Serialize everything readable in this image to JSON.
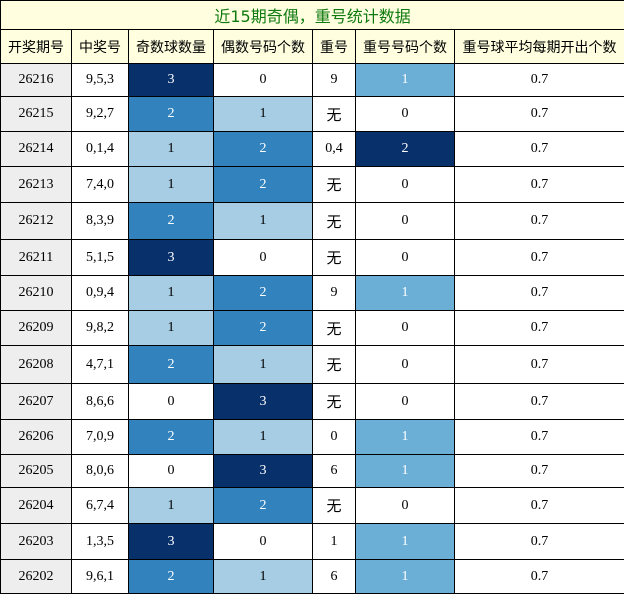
{
  "title": "近15期奇偶，重号统计数据",
  "headers": [
    "开奖期号",
    "中奖号",
    "奇数球数量",
    "偶数号码个数",
    "重号",
    "重号号码个数",
    "重号球平均每期开出个数"
  ],
  "rows": [
    {
      "issue": "26216",
      "numbers": "9,5,3",
      "odd": "3",
      "even": "0",
      "repeat": "9",
      "repeat_count": "1",
      "avg": "0.7"
    },
    {
      "issue": "26215",
      "numbers": "9,2,7",
      "odd": "2",
      "even": "1",
      "repeat": "无",
      "repeat_count": "0",
      "avg": "0.7"
    },
    {
      "issue": "26214",
      "numbers": "0,1,4",
      "odd": "1",
      "even": "2",
      "repeat": "0,4",
      "repeat_count": "2",
      "avg": "0.7"
    },
    {
      "issue": "26213",
      "numbers": "7,4,0",
      "odd": "1",
      "even": "2",
      "repeat": "无",
      "repeat_count": "0",
      "avg": "0.7"
    },
    {
      "issue": "26212",
      "numbers": "8,3,9",
      "odd": "2",
      "even": "1",
      "repeat": "无",
      "repeat_count": "0",
      "avg": "0.7"
    },
    {
      "issue": "26211",
      "numbers": "5,1,5",
      "odd": "3",
      "even": "0",
      "repeat": "无",
      "repeat_count": "0",
      "avg": "0.7"
    },
    {
      "issue": "26210",
      "numbers": "0,9,4",
      "odd": "1",
      "even": "2",
      "repeat": "9",
      "repeat_count": "1",
      "avg": "0.7"
    },
    {
      "issue": "26209",
      "numbers": "9,8,2",
      "odd": "1",
      "even": "2",
      "repeat": "无",
      "repeat_count": "0",
      "avg": "0.7"
    },
    {
      "issue": "26208",
      "numbers": "4,7,1",
      "odd": "2",
      "even": "1",
      "repeat": "无",
      "repeat_count": "0",
      "avg": "0.7"
    },
    {
      "issue": "26207",
      "numbers": "8,6,6",
      "odd": "0",
      "even": "3",
      "repeat": "无",
      "repeat_count": "0",
      "avg": "0.7"
    },
    {
      "issue": "26206",
      "numbers": "7,0,9",
      "odd": "2",
      "even": "1",
      "repeat": "0",
      "repeat_count": "1",
      "avg": "0.7"
    },
    {
      "issue": "26205",
      "numbers": "8,0,6",
      "odd": "0",
      "even": "3",
      "repeat": "6",
      "repeat_count": "1",
      "avg": "0.7"
    },
    {
      "issue": "26204",
      "numbers": "6,7,4",
      "odd": "1",
      "even": "2",
      "repeat": "无",
      "repeat_count": "0",
      "avg": "0.7"
    },
    {
      "issue": "26203",
      "numbers": "1,3,5",
      "odd": "3",
      "even": "0",
      "repeat": "1",
      "repeat_count": "1",
      "avg": "0.7"
    },
    {
      "issue": "26202",
      "numbers": "9,6,1",
      "odd": "2",
      "even": "1",
      "repeat": "6",
      "repeat_count": "1",
      "avg": "0.7"
    }
  ]
}
